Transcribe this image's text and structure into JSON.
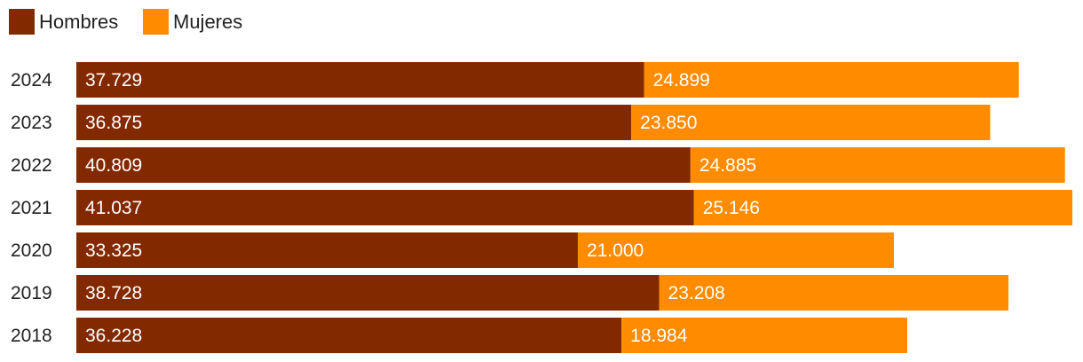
{
  "chart_data": {
    "type": "bar",
    "orientation": "horizontal",
    "stacked": true,
    "categories": [
      "2024",
      "2023",
      "2022",
      "2021",
      "2020",
      "2019",
      "2018"
    ],
    "series": [
      {
        "name": "Hombres",
        "color": "#822900",
        "values": [
          37729,
          36875,
          40809,
          41037,
          33325,
          38728,
          36228
        ],
        "labels": [
          "37.729",
          "36.875",
          "40.809",
          "41.037",
          "33.325",
          "38.728",
          "36.228"
        ]
      },
      {
        "name": "Mujeres",
        "color": "#FF8C00",
        "values": [
          24899,
          23850,
          24885,
          25146,
          21000,
          23208,
          18984
        ],
        "labels": [
          "24.899",
          "23.850",
          "24.885",
          "25.146",
          "21.000",
          "23.208",
          "18.984"
        ]
      }
    ],
    "legend": "top-left",
    "grid": false,
    "xlim": [
      0,
      66183
    ]
  }
}
